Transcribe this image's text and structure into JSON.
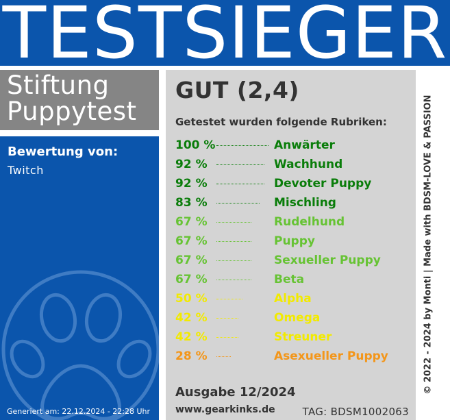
{
  "banner": {
    "title": "TESTSIEGER"
  },
  "brand": {
    "line1": "Stiftung",
    "line2": "Puppytest"
  },
  "rating": {
    "label": "Bewertung von:",
    "value": "Twitch"
  },
  "footer_left": {
    "generated": "Generiert am: 22.12.2024 - 22:28 Uhr"
  },
  "result": {
    "grade": "GUT (2,4)",
    "intro": "Getestet wurden folgende Rubriken:",
    "categories": [
      {
        "percent": "100 %",
        "value": 100,
        "name": "Anwärter",
        "color": "#0a7d0a"
      },
      {
        "percent": "92 %",
        "value": 92,
        "name": "Wachhund",
        "color": "#0a7d0a"
      },
      {
        "percent": "92 %",
        "value": 92,
        "name": "Devoter Puppy",
        "color": "#0a7d0a"
      },
      {
        "percent": "83 %",
        "value": 83,
        "name": "Mischling",
        "color": "#0a7d0a"
      },
      {
        "percent": "67 %",
        "value": 67,
        "name": "Rudelhund",
        "color": "#66c333"
      },
      {
        "percent": "67 %",
        "value": 67,
        "name": "Puppy",
        "color": "#66c333"
      },
      {
        "percent": "67 %",
        "value": 67,
        "name": "Sexueller Puppy",
        "color": "#66c333"
      },
      {
        "percent": "67 %",
        "value": 67,
        "name": "Beta",
        "color": "#66c333"
      },
      {
        "percent": "50 %",
        "value": 50,
        "name": "Alpha",
        "color": "#f2ea00"
      },
      {
        "percent": "42 %",
        "value": 42,
        "name": "Omega",
        "color": "#f2ea00"
      },
      {
        "percent": "42 %",
        "value": 42,
        "name": "Streuner",
        "color": "#f2ea00"
      },
      {
        "percent": "28 %",
        "value": 28,
        "name": "Asexueller Puppy",
        "color": "#f3961a"
      }
    ],
    "issue": "Ausgabe 12/2024",
    "website": "www.gearkinks.de",
    "tag": "TAG: BDSM1002063"
  },
  "side": {
    "copyright": "© 2022 - 2024 by Monti | Made with BDSM-LOVE & PASSION"
  },
  "colors": {
    "brand_blue": "#0b55ac",
    "grey_box": "#858585",
    "panel_grey": "#d4d4d4"
  },
  "icons": {
    "emblem": "paw-print-icon"
  }
}
